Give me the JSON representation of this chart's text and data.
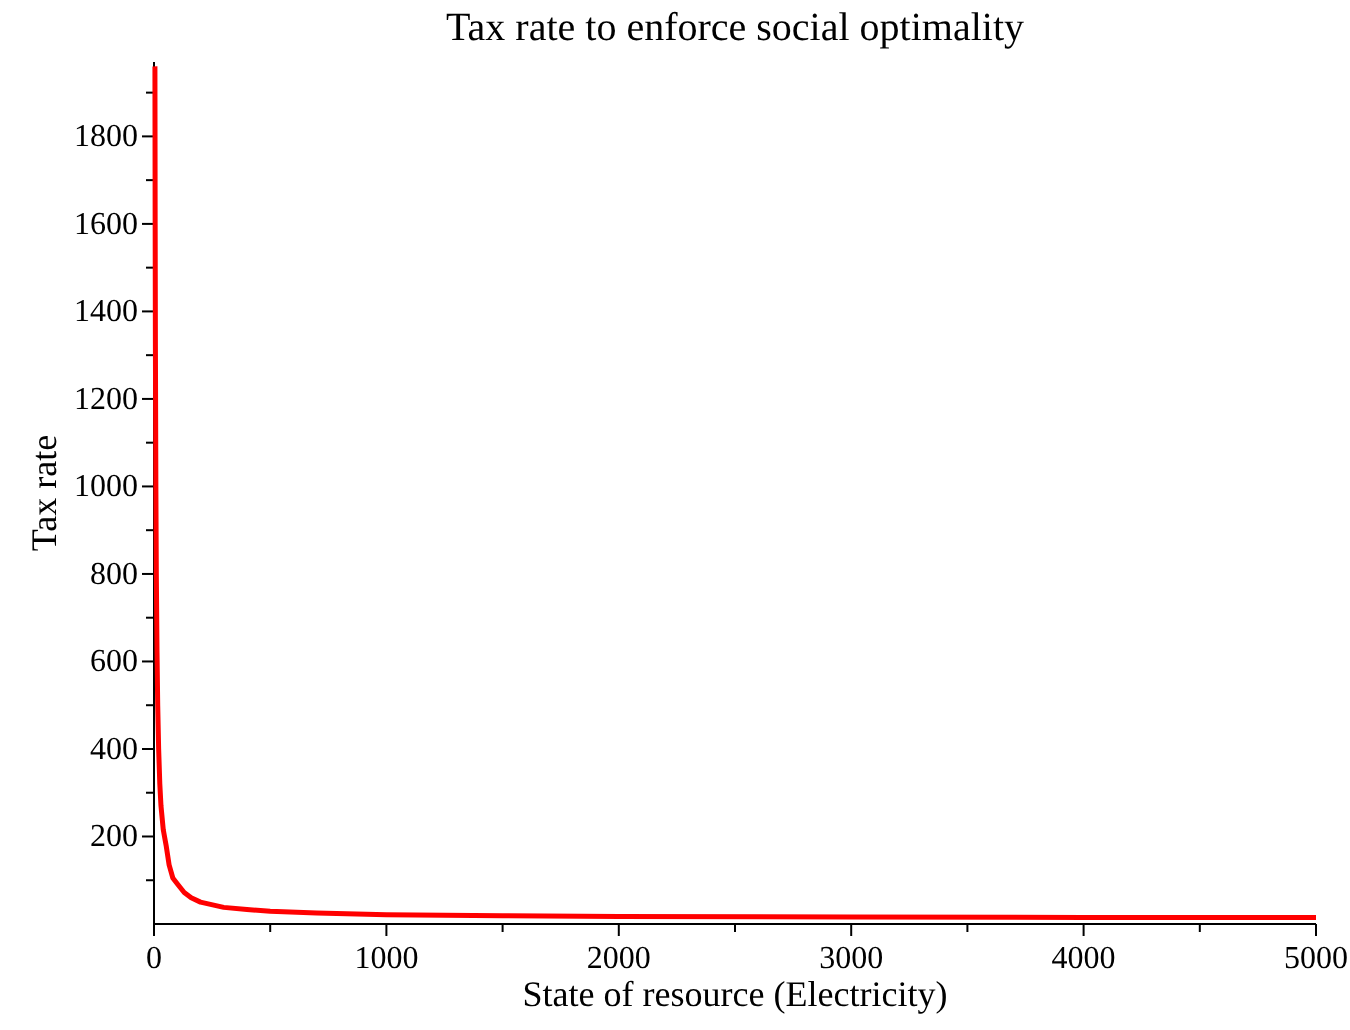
{
  "chart_data": {
    "type": "line",
    "title": "Tax rate to enforce social optimality",
    "xlabel": "State of resource (Electricity)",
    "ylabel": "Tax rate",
    "x": [
      4,
      5,
      6,
      8,
      10,
      13,
      16,
      20,
      25,
      30,
      40,
      52,
      65,
      81,
      100,
      130,
      160,
      200,
      300,
      400,
      500,
      700,
      1000,
      1500,
      2000,
      3000,
      4000,
      5000
    ],
    "series": [
      {
        "color": "#ff0000",
        "values": [
          1960,
          1600,
          1330,
          1000,
          800,
          620,
          500,
          400,
          320,
          270,
          215,
          180,
          135,
          105,
          92,
          72,
          60,
          50,
          38,
          33,
          29,
          25,
          21,
          19,
          17,
          16,
          15,
          15
        ]
      }
    ],
    "xlim": [
      0,
      5000
    ],
    "ylim": [
      0,
      1970
    ],
    "xticks": [
      0,
      {
        "value": 500,
        "label": null
      },
      1000,
      {
        "value": 1500,
        "label": null
      },
      2000,
      {
        "value": 2500,
        "label": null
      },
      3000,
      {
        "value": 3500,
        "label": null
      },
      4000,
      {
        "value": 4500,
        "label": null
      },
      5000
    ],
    "yticks": [
      {
        "value": 100,
        "label": null
      },
      200,
      {
        "value": 300,
        "label": null
      },
      400,
      {
        "value": 500,
        "label": null
      },
      600,
      {
        "value": 700,
        "label": null
      },
      800,
      {
        "value": 900,
        "label": null
      },
      1000,
      {
        "value": 1100,
        "label": null
      },
      1200,
      {
        "value": 1300,
        "label": null
      },
      1400,
      {
        "value": 1500,
        "label": null
      },
      1600,
      {
        "value": 1700,
        "label": null
      },
      1800,
      {
        "value": 1900,
        "label": null
      }
    ],
    "grid": false,
    "marker": "none",
    "line_style": "solid"
  }
}
